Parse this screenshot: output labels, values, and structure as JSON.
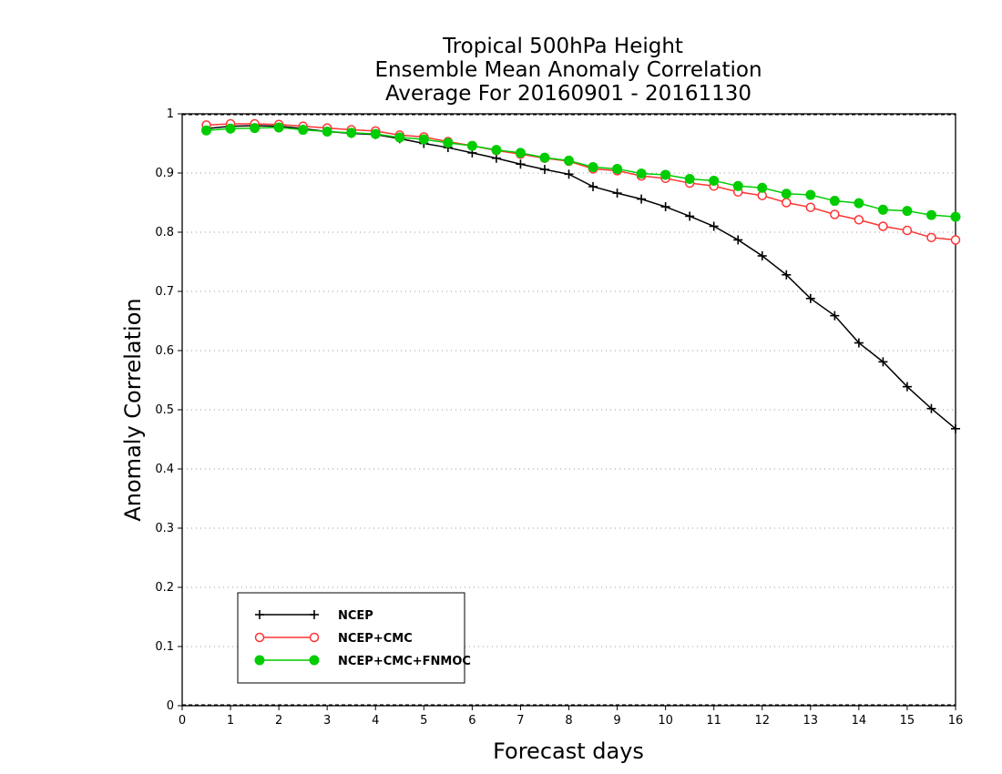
{
  "chart_data": {
    "type": "line",
    "title": [
      "Tropical 500hPa Height",
      "Ensemble Mean Anomaly Correlation",
      "Average For 20160901 - 20161130"
    ],
    "xlabel": "Forecast days",
    "ylabel": "Anomaly Correlation",
    "xlim": [
      0,
      16
    ],
    "ylim": [
      0,
      1
    ],
    "xticks": [
      "0",
      "1",
      "2",
      "3",
      "4",
      "5",
      "6",
      "7",
      "8",
      "9",
      "10",
      "11",
      "12",
      "13",
      "14",
      "15",
      "16"
    ],
    "yticks": [
      "0",
      "0.1",
      "0.2",
      "0.3",
      "0.4",
      "0.5",
      "0.6",
      "0.7",
      "0.8",
      "0.9",
      "1"
    ],
    "grid": "horizontal dotted",
    "legend_position": "bottom-left",
    "x": [
      0.5,
      1,
      1.5,
      2,
      2.5,
      3,
      3.5,
      4,
      4.5,
      5,
      5.5,
      6,
      6.5,
      7,
      7.5,
      8,
      8.5,
      9,
      9.5,
      10,
      10.5,
      11,
      11.5,
      12,
      12.5,
      13,
      13.5,
      14,
      14.5,
      15,
      15.5,
      16
    ],
    "series": [
      {
        "name": "NCEP",
        "color": "#000000",
        "marker": "plus",
        "values": [
          0.975,
          0.979,
          0.98,
          0.979,
          0.975,
          0.97,
          0.967,
          0.965,
          0.958,
          0.95,
          0.943,
          0.934,
          0.925,
          0.915,
          0.906,
          0.898,
          0.877,
          0.866,
          0.856,
          0.843,
          0.827,
          0.81,
          0.787,
          0.76,
          0.728,
          0.688,
          0.659,
          0.613,
          0.581,
          0.539,
          0.502,
          0.468
        ]
      },
      {
        "name": "NCEP+CMC",
        "color": "#ff3333",
        "marker": "open-circle",
        "values": [
          0.981,
          0.983,
          0.983,
          0.982,
          0.979,
          0.976,
          0.973,
          0.971,
          0.964,
          0.961,
          0.953,
          0.946,
          0.938,
          0.932,
          0.925,
          0.92,
          0.907,
          0.904,
          0.895,
          0.891,
          0.883,
          0.878,
          0.868,
          0.862,
          0.85,
          0.842,
          0.83,
          0.821,
          0.81,
          0.803,
          0.791,
          0.787
        ]
      },
      {
        "name": "NCEP+CMC+FNMOC",
        "color": "#00cc00",
        "marker": "filled-circle",
        "values": [
          0.972,
          0.975,
          0.976,
          0.977,
          0.973,
          0.97,
          0.968,
          0.966,
          0.96,
          0.957,
          0.951,
          0.946,
          0.939,
          0.934,
          0.926,
          0.921,
          0.91,
          0.907,
          0.899,
          0.897,
          0.89,
          0.887,
          0.878,
          0.875,
          0.865,
          0.863,
          0.853,
          0.849,
          0.838,
          0.836,
          0.829,
          0.826
        ]
      }
    ]
  }
}
